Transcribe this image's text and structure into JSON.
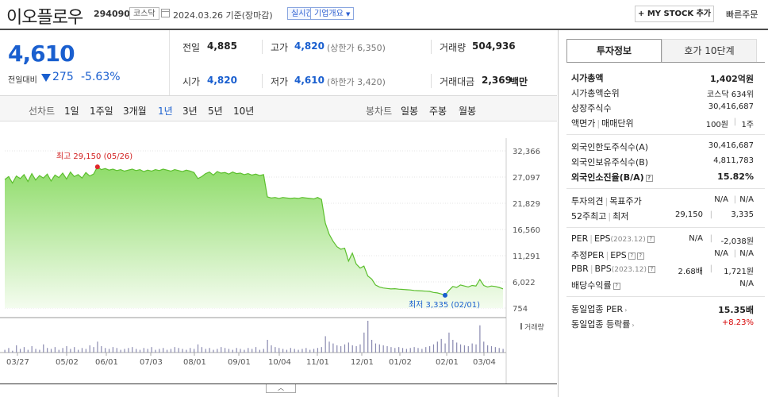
{
  "header": {
    "name": "이오플로우",
    "code": "294090",
    "market": "코스닥",
    "date": "2024.03.26 기준(장마감)",
    "live": "실시간",
    "company_info": "기업개요",
    "mystock": "+ MY STOCK 추가",
    "quick_order": "빠른주문"
  },
  "price": {
    "current": "4,610",
    "change_label": "전일대비",
    "change": "275",
    "change_pct": "-5.63%"
  },
  "quote": {
    "prev_label": "전일",
    "prev": "4,885",
    "high_label": "고가",
    "high": "4,820",
    "upper_limit": "(상한가 6,350)",
    "volume_label": "거래량",
    "volume": "504,936",
    "open_label": "시가",
    "open": "4,820",
    "low_label": "저가",
    "low": "4,610",
    "lower_limit": "(하한가 3,420)",
    "amount_label": "거래대금",
    "amount": "2,369",
    "amount_unit": "백만"
  },
  "periods": {
    "line_label": "선차트",
    "items": [
      "1일",
      "1주일",
      "3개월",
      "1년",
      "3년",
      "5년",
      "10년"
    ],
    "selected": "1년",
    "candle_label": "봉차트",
    "candle_items": [
      "일봉",
      "주봉",
      "월봉"
    ]
  },
  "chart_data": {
    "type": "area",
    "x_ticks": [
      "03/27",
      "05/02",
      "06/01",
      "07/03",
      "08/01",
      "09/01",
      "10/04",
      "11/01",
      "12/01",
      "01/02",
      "02/01",
      "03/04"
    ],
    "y_ticks": [
      "32,366",
      "27,097",
      "21,829",
      "16,560",
      "11,291",
      "6,022",
      "754"
    ],
    "ylim": [
      754,
      32366
    ],
    "high_annotation": "최고 29,150 (05/26)",
    "low_annotation": "최저 3,335 (02/01)",
    "high": 29150,
    "low": 3335,
    "volume_label": "거래량",
    "prices": [
      26600,
      27200,
      25900,
      27300,
      26800,
      27600,
      26200,
      27800,
      26500,
      27400,
      26900,
      27700,
      26300,
      27500,
      27000,
      27900,
      26700,
      28100,
      27200,
      27600,
      26900,
      28000,
      27300,
      27700,
      29150,
      28600,
      28800,
      28500,
      28700,
      28400,
      28600,
      28300,
      28500,
      28700,
      28400,
      28600,
      28200,
      28500,
      28300,
      28600,
      28400,
      28700,
      28500,
      28300,
      28600,
      28400,
      28200,
      28500,
      28300,
      28000,
      26800,
      27200,
      27800,
      28100,
      27500,
      28200,
      27900,
      28000,
      27700,
      28100,
      27800,
      27900,
      27600,
      27800,
      27500,
      27700,
      27400,
      27600,
      23100,
      22900,
      23000,
      22800,
      23000,
      22900,
      22800,
      22900,
      22800,
      23000,
      22900,
      22800,
      22700,
      23000,
      22600,
      17800,
      15600,
      14200,
      13100,
      12600,
      12800,
      10200,
      11800,
      9600,
      8800,
      9200,
      7200,
      6600,
      5400,
      5000,
      4800,
      4700,
      4600,
      4650,
      4550,
      4500,
      4450,
      4400,
      4300,
      4250,
      4200,
      4150,
      4100,
      3900,
      3800,
      3600,
      3335,
      4300,
      5100,
      4900,
      5400,
      5200,
      5000,
      5300,
      5200,
      6500,
      5300,
      5000,
      5200,
      5100,
      4900,
      4610
    ],
    "volumes": [
      3,
      5,
      2,
      8,
      4,
      6,
      3,
      7,
      4,
      3,
      9,
      5,
      4,
      6,
      3,
      5,
      7,
      4,
      6,
      3,
      5,
      4,
      8,
      6,
      12,
      7,
      5,
      4,
      6,
      5,
      3,
      4,
      5,
      6,
      4,
      3,
      5,
      4,
      6,
      3,
      4,
      5,
      3,
      4,
      6,
      5,
      4,
      3,
      5,
      4,
      9,
      6,
      4,
      5,
      3,
      4,
      6,
      5,
      4,
      3,
      5,
      4,
      3,
      5,
      4,
      6,
      3,
      4,
      14,
      8,
      6,
      5,
      4,
      3,
      5,
      4,
      3,
      4,
      5,
      3,
      4,
      5,
      6,
      18,
      12,
      10,
      8,
      7,
      9,
      11,
      8,
      7,
      9,
      22,
      35,
      14,
      10,
      9,
      8,
      7,
      6,
      5,
      6,
      5,
      4,
      5,
      6,
      5,
      4,
      6,
      7,
      9,
      12,
      15,
      10,
      22,
      14,
      11,
      9,
      8,
      7,
      10,
      9,
      30,
      12,
      8,
      7,
      6,
      5,
      4
    ]
  },
  "panel": {
    "tab_active": "투자정보",
    "tab_other": "호가 10단계",
    "rows1": [
      {
        "k": "시가총액",
        "v": "1,402억원",
        "bold": true
      },
      {
        "k": "시가총액순위",
        "v": "코스닥 634위"
      },
      {
        "k": "상장주식수",
        "v": "30,416,687"
      },
      {
        "k": "액면가",
        "k2": "매매단위",
        "v": "100원",
        "v2": "1주"
      }
    ],
    "rows2": [
      {
        "k": "외국인한도주식수(A)",
        "v": "30,416,687"
      },
      {
        "k": "외국인보유주식수(B)",
        "v": "4,811,783"
      },
      {
        "k": "외국인소진율(B/A)",
        "v": "15.82%",
        "bold": true
      }
    ],
    "rows3": [
      {
        "k": "투자의견",
        "k2": "목표주가",
        "v": "N/A",
        "v2": "N/A"
      },
      {
        "k": "52주최고",
        "k2": "최저",
        "v": "29,150",
        "v2": "3,335"
      }
    ],
    "rows4": [
      {
        "k": "PER",
        "k2": "EPS",
        "k2sm": "(2023.12)",
        "v": "N/A",
        "v2": "-2,038원"
      },
      {
        "k": "추정PER",
        "k2": "EPS",
        "v": "N/A",
        "v2": "N/A"
      },
      {
        "k": "PBR",
        "k2": "BPS",
        "k2sm": "(2023.12)",
        "v": "2.68배",
        "v2": "1,721원"
      },
      {
        "k": "배당수익률",
        "v": "N/A"
      }
    ],
    "rows5": [
      {
        "k": "동일업종 PER",
        "v": "15.35배",
        "bold": true
      },
      {
        "k": "동일업종 등락률",
        "v": "+8.23%",
        "red": true
      }
    ]
  }
}
